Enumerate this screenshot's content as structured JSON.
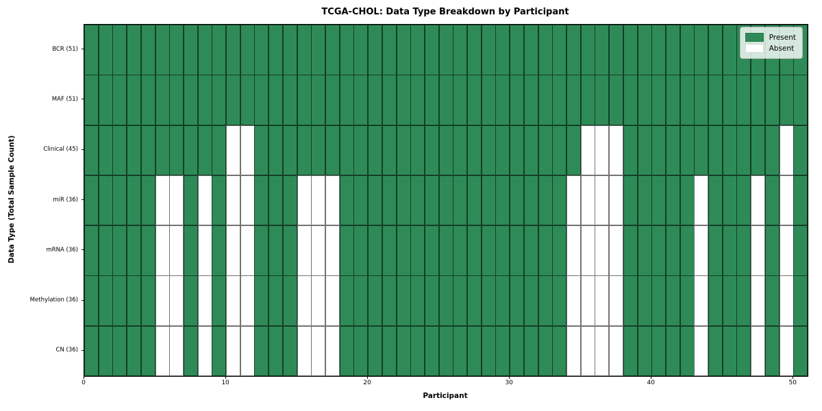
{
  "chart_data": {
    "type": "heatmap",
    "title": "TCGA-CHOL: Data Type Breakdown by Participant",
    "xlabel": "Participant",
    "ylabel": "Data Type (Total Sample Count)",
    "n_participants": 51,
    "xlim": [
      0,
      51
    ],
    "x_ticks": [
      0,
      10,
      20,
      30,
      40,
      50
    ],
    "grid": true,
    "rows": [
      {
        "label": "BCR (51)",
        "data_type": "BCR",
        "present_count": 51,
        "absent_participants": []
      },
      {
        "label": "MAF (51)",
        "data_type": "MAF",
        "present_count": 51,
        "absent_participants": []
      },
      {
        "label": "Clinical (45)",
        "data_type": "Clinical",
        "present_count": 45,
        "absent_participants": [
          10,
          11,
          35,
          36,
          37,
          49
        ]
      },
      {
        "label": "miR (36)",
        "data_type": "miR",
        "present_count": 36,
        "absent_participants": [
          5,
          6,
          8,
          10,
          11,
          15,
          16,
          17,
          34,
          35,
          36,
          37,
          43,
          47,
          49
        ]
      },
      {
        "label": "mRNA (36)",
        "data_type": "mRNA",
        "present_count": 36,
        "absent_participants": [
          5,
          6,
          8,
          10,
          11,
          15,
          16,
          17,
          34,
          35,
          36,
          37,
          43,
          47,
          49
        ]
      },
      {
        "label": "Methylation (36)",
        "data_type": "Methylation",
        "present_count": 36,
        "absent_participants": [
          5,
          6,
          8,
          10,
          11,
          15,
          16,
          17,
          34,
          35,
          36,
          37,
          43,
          47,
          49
        ]
      },
      {
        "label": "CN (36)",
        "data_type": "CN",
        "present_count": 36,
        "absent_participants": [
          5,
          6,
          8,
          10,
          11,
          15,
          16,
          17,
          34,
          35,
          36,
          37,
          43,
          47,
          49
        ]
      }
    ],
    "legend": {
      "position": "upper right",
      "entries": [
        {
          "label": "Present",
          "color": "#2e8b57"
        },
        {
          "label": "Absent",
          "color": "#ffffff"
        }
      ]
    },
    "colors": {
      "present": "#2e8b57",
      "absent": "#ffffff",
      "cell_border": "rgba(0,0,0,0.55)",
      "axis": "#000000"
    }
  }
}
